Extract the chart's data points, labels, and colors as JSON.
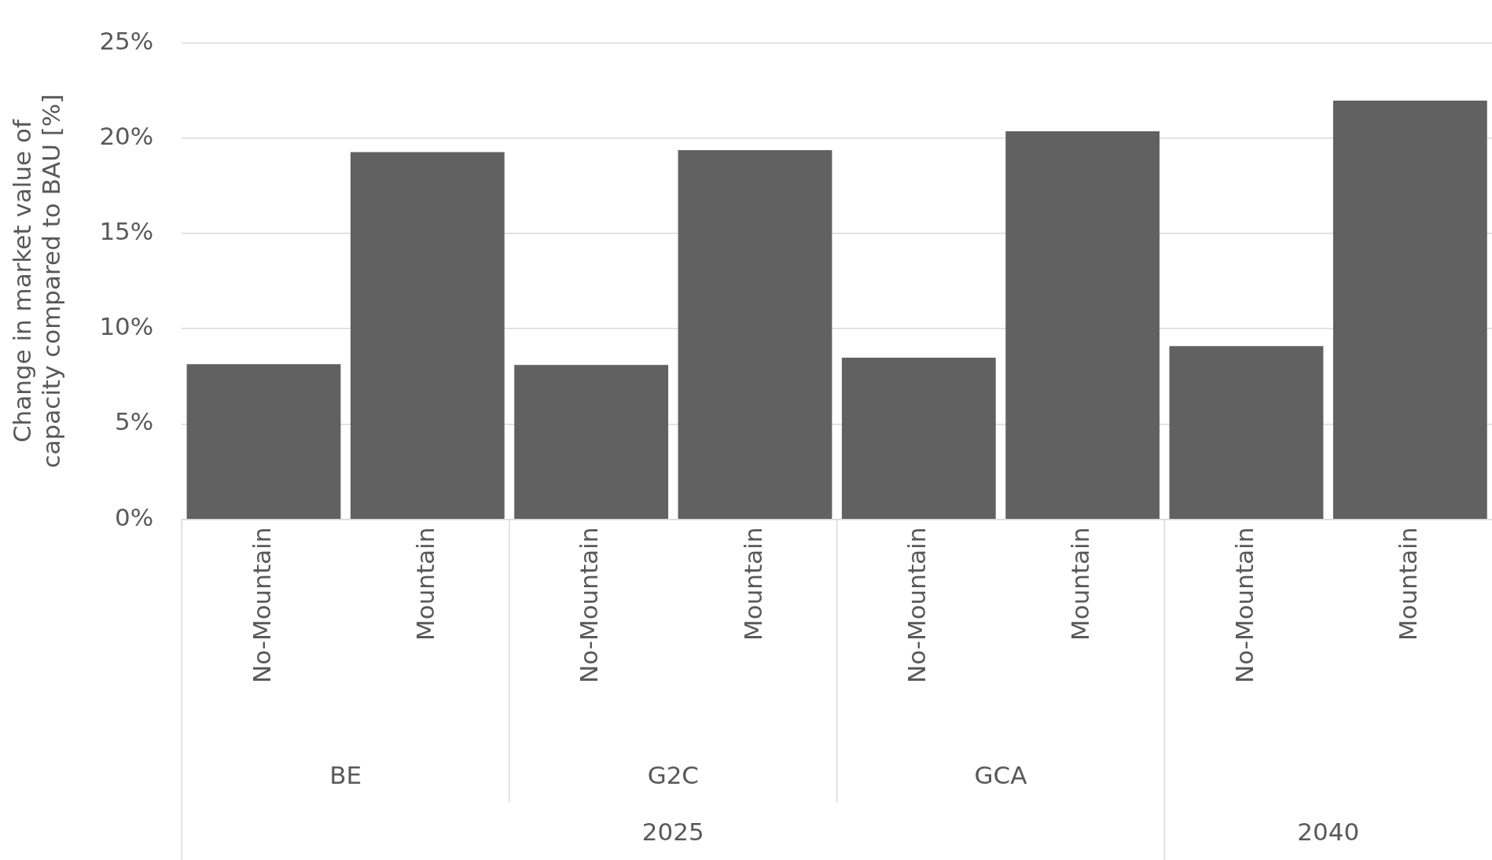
{
  "chart_data": {
    "type": "bar",
    "ylabel": "Change in market value of capacity compared to BAU [%]",
    "categories": [
      "No-Mountain",
      "Mountain",
      "No-Mountain",
      "Mountain",
      "No-Mountain",
      "Mountain",
      "No-Mountain",
      "Mountain"
    ],
    "values": [
      8.14,
      19.27,
      8.1,
      19.37,
      8.48,
      20.36,
      9.09,
      21.97
    ],
    "color": "#616161",
    "ylim": [
      0,
      25
    ],
    "yticks": [
      {
        "value": 0,
        "label": "0%"
      },
      {
        "value": 5,
        "label": "5%"
      },
      {
        "value": 10,
        "label": "10%"
      },
      {
        "value": 15,
        "label": "15%"
      },
      {
        "value": 20,
        "label": "20%"
      },
      {
        "value": 25,
        "label": "25%"
      }
    ],
    "grid": "y",
    "legend": false,
    "annotations": [
      "BE",
      "G2C",
      "GCA",
      "2025",
      "2040"
    ]
  }
}
